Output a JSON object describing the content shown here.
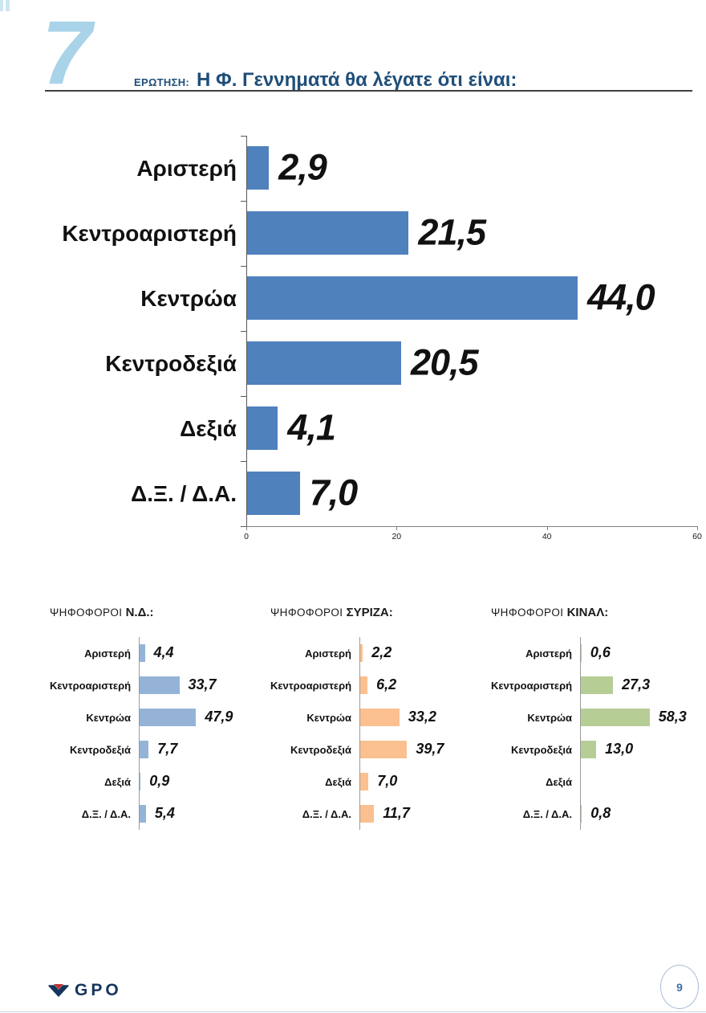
{
  "header": {
    "numeral": "7",
    "question_label": "ΕΡΩΤΗΣΗ:",
    "question_text": "Η Φ. Γεννηματά θα λέγατε ότι είναι:"
  },
  "footer": {
    "logo_text": "GPO",
    "page_number": "9"
  },
  "colors": {
    "accent_numeral": "#a9d3e9",
    "title_navy": "#1f4e79",
    "main_bar": "#4f81bd",
    "nd_bar": "#95b3d7",
    "syriza_bar": "#fac090",
    "kinal_bar": "#b7cd96",
    "logo_navy": "#16355c",
    "logo_red": "#c2332f",
    "badge_blue": "#3f6fa8"
  },
  "chart_data": [
    {
      "id": "main",
      "type": "bar",
      "orientation": "horizontal",
      "title": "Η Φ. Γεννηματά θα λέγατε ότι είναι:",
      "categories": [
        "Αριστερή",
        "Κεντροαριστερή",
        "Κεντρώα",
        "Κεντροδεξιά",
        "Δεξιά",
        "Δ.Ξ. / Δ.Α."
      ],
      "values": [
        2.9,
        21.5,
        44.0,
        20.5,
        4.1,
        7.0
      ],
      "value_labels": [
        "2,9",
        "21,5",
        "44,0",
        "20,5",
        "4,1",
        "7,0"
      ],
      "xlim": [
        0,
        60
      ],
      "x_ticks": [
        0,
        20,
        40,
        60
      ],
      "x_tick_labels": [
        "0",
        "20",
        "40",
        "60"
      ],
      "bar_color": "#4f81bd",
      "grid": false
    },
    {
      "id": "nd-voters",
      "type": "bar",
      "orientation": "horizontal",
      "title_prefix": "ΨΗΦΟΦΟΡΟΙ",
      "title_group": "Ν.Δ.:",
      "categories": [
        "Αριστερή",
        "Κεντροαριστερή",
        "Κεντρώα",
        "Κεντροδεξιά",
        "Δεξιά",
        "Δ.Ξ. / Δ.Α."
      ],
      "values": [
        4.4,
        33.7,
        47.9,
        7.7,
        0.9,
        5.4
      ],
      "value_labels": [
        "4,4",
        "33,7",
        "47,9",
        "7,7",
        "0,9",
        "5,4"
      ],
      "bar_color": "#95b3d7",
      "grid": false
    },
    {
      "id": "syriza-voters",
      "type": "bar",
      "orientation": "horizontal",
      "title_prefix": "ΨΗΦΟΦΟΡΟΙ",
      "title_group": "ΣΥΡΙΖΑ:",
      "categories": [
        "Αριστερή",
        "Κεντροαριστερή",
        "Κεντρώα",
        "Κεντροδεξιά",
        "Δεξιά",
        "Δ.Ξ. / Δ.Α."
      ],
      "values": [
        2.2,
        6.2,
        33.2,
        39.7,
        7.0,
        11.7
      ],
      "value_labels": [
        "2,2",
        "6,2",
        "33,2",
        "39,7",
        "7,0",
        "11,7"
      ],
      "bar_color": "#fac090",
      "grid": false
    },
    {
      "id": "kinal-voters",
      "type": "bar",
      "orientation": "horizontal",
      "title_prefix": "ΨΗΦΟΦΟΡΟΙ",
      "title_group": "ΚΙΝΑΛ:",
      "categories": [
        "Αριστερή",
        "Κεντροαριστερή",
        "Κεντρώα",
        "Κεντροδεξιά",
        "Δεξιά",
        "Δ.Ξ. / Δ.Α."
      ],
      "values": [
        0.6,
        27.3,
        58.3,
        13.0,
        null,
        0.8
      ],
      "value_labels": [
        "0,6",
        "27,3",
        "58,3",
        "13,0",
        "",
        "0,8"
      ],
      "bar_color": "#b7cd96",
      "grid": false
    }
  ]
}
